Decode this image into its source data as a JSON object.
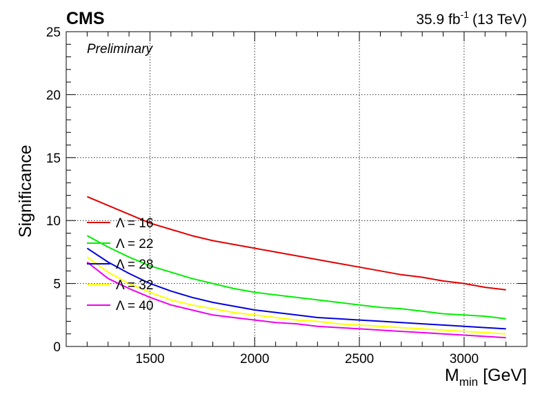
{
  "chart_data": {
    "type": "line",
    "experiment": "CMS",
    "status": "Preliminary",
    "lumi": {
      "value": "35.9 fb",
      "exp": "-1",
      "energy": "(13 TeV)"
    },
    "xlabel": {
      "main": "M",
      "sub": "min",
      "unit": " [GeV]"
    },
    "ylabel": "Significance",
    "xlim": [
      1100,
      3300
    ],
    "ylim": [
      0,
      25
    ],
    "xticks": [
      1500,
      2000,
      2500,
      3000
    ],
    "yticks": [
      0,
      5,
      10,
      15,
      20,
      25
    ],
    "grid": true,
    "legend_position": "center-left",
    "x": [
      1200,
      1300,
      1400,
      1500,
      1600,
      1700,
      1800,
      1900,
      2000,
      2100,
      2200,
      2300,
      2400,
      2500,
      2600,
      2700,
      2800,
      2900,
      3000,
      3100,
      3200
    ],
    "series": [
      {
        "name": "Λ = 16",
        "color": "#e00000",
        "values": [
          11.9,
          11.2,
          10.5,
          9.8,
          9.3,
          8.8,
          8.4,
          8.1,
          7.8,
          7.5,
          7.2,
          6.9,
          6.6,
          6.3,
          6.0,
          5.7,
          5.5,
          5.2,
          5.0,
          4.7,
          4.5
        ]
      },
      {
        "name": "Λ = 22",
        "color": "#00ee00",
        "values": [
          8.8,
          7.9,
          7.1,
          6.4,
          5.9,
          5.4,
          5.0,
          4.6,
          4.3,
          4.1,
          3.9,
          3.7,
          3.5,
          3.3,
          3.1,
          3.0,
          2.8,
          2.6,
          2.5,
          2.4,
          2.2
        ]
      },
      {
        "name": "Λ = 28",
        "color": "#0000dd",
        "values": [
          7.8,
          6.7,
          5.8,
          5.0,
          4.4,
          3.9,
          3.5,
          3.2,
          2.9,
          2.7,
          2.5,
          2.3,
          2.2,
          2.1,
          2.0,
          1.9,
          1.8,
          1.7,
          1.6,
          1.5,
          1.4
        ]
      },
      {
        "name": "Λ = 32",
        "color": "#ffff00",
        "values": [
          7.1,
          5.9,
          5.0,
          4.3,
          3.7,
          3.3,
          3.0,
          2.7,
          2.5,
          2.3,
          2.1,
          2.0,
          1.8,
          1.7,
          1.6,
          1.5,
          1.4,
          1.3,
          1.2,
          1.1,
          1.0
        ]
      },
      {
        "name": "Λ = 40",
        "color": "#ee00ee",
        "values": [
          6.7,
          5.4,
          4.6,
          3.9,
          3.3,
          2.9,
          2.5,
          2.3,
          2.1,
          1.9,
          1.8,
          1.6,
          1.5,
          1.4,
          1.3,
          1.2,
          1.1,
          1.0,
          0.9,
          0.8,
          0.7
        ]
      }
    ]
  }
}
